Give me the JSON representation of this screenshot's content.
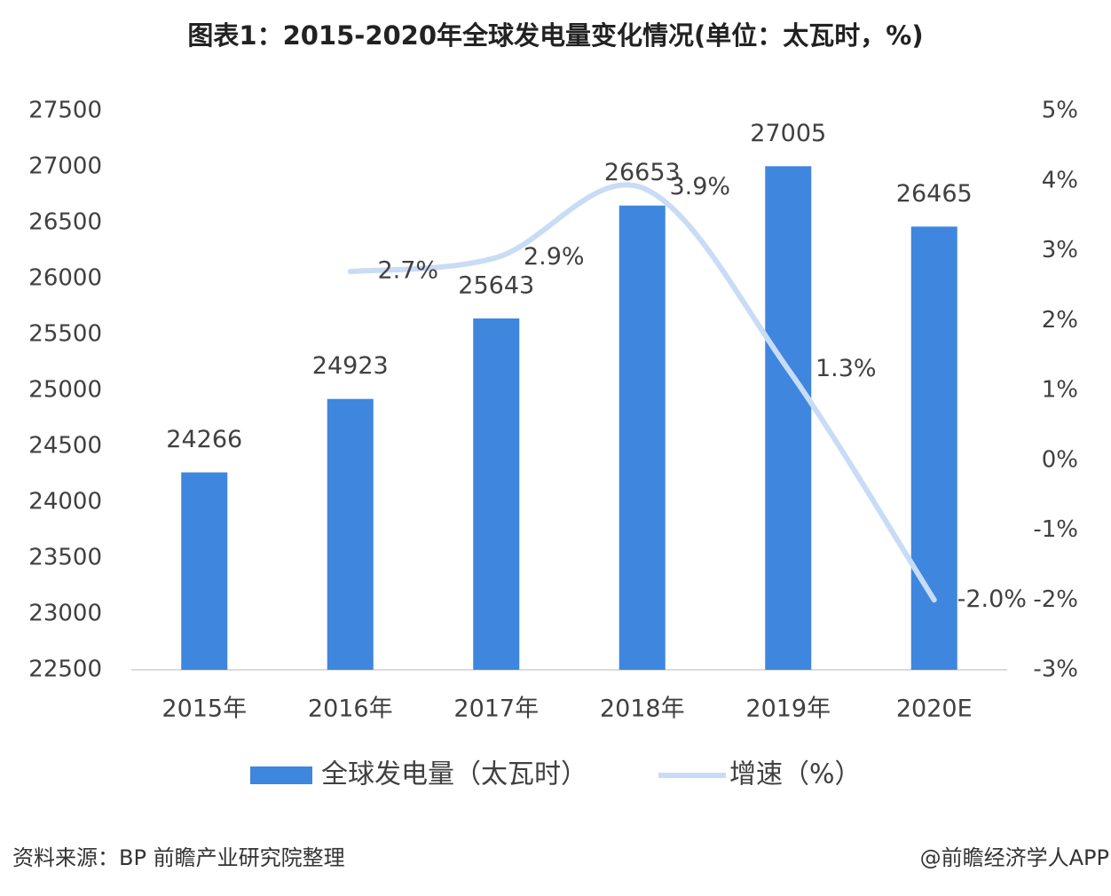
{
  "chart_data": {
    "type": "bar",
    "title": "图表1：2015-2020年全球发电量变化情况(单位：太瓦时，%)",
    "categories": [
      "2015年",
      "2016年",
      "2017年",
      "2018年",
      "2019年",
      "2020E"
    ],
    "series": [
      {
        "name": "全球发电量（太瓦时）",
        "color": "#3f86de",
        "values": [
          24266,
          24923,
          25643,
          26653,
          27005,
          26465
        ]
      },
      {
        "name": "增速（%）",
        "color": "#c8dcf5",
        "type": "line",
        "axis": "y2",
        "values": [
          null,
          2.7,
          2.9,
          3.9,
          1.3,
          -2.0
        ],
        "value_labels": [
          null,
          "2.7%",
          "2.9%",
          "3.9%",
          "1.3%",
          "-2.0%"
        ]
      }
    ],
    "ylim": [
      22500,
      27500
    ],
    "yticks": [
      22500,
      23000,
      23500,
      24000,
      24500,
      25000,
      25500,
      26000,
      26500,
      27000,
      27500
    ],
    "y2lim": [
      -3,
      5
    ],
    "y2ticks": [
      {
        "value": -3,
        "label": "-3%"
      },
      {
        "value": -2,
        "label": "-2%"
      },
      {
        "value": -1,
        "label": "-1%"
      },
      {
        "value": 0,
        "label": "0%"
      },
      {
        "value": 1,
        "label": "1%"
      },
      {
        "value": 2,
        "label": "2%"
      },
      {
        "value": 3,
        "label": "3%"
      },
      {
        "value": 4,
        "label": "4%"
      },
      {
        "value": 5,
        "label": "5%"
      }
    ],
    "legend": "bottom",
    "source": "资料来源：BP 前瞻产业研究院整理",
    "credit": "@前瞻经济学人APP"
  }
}
